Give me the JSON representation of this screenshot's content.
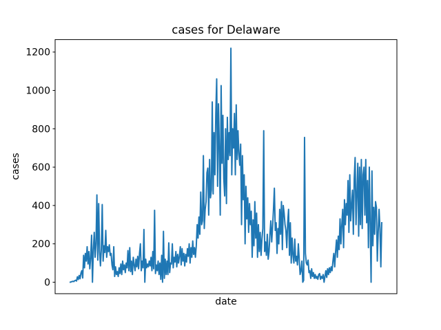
{
  "chart_data": {
    "type": "line",
    "title": "cases for Delaware",
    "xlabel": "date",
    "ylabel": "cases",
    "ylim": [
      -60,
      1265
    ],
    "yticks": [
      0,
      200,
      400,
      600,
      800,
      1000,
      1200
    ],
    "grid": false,
    "legend": "none",
    "line_color": "#1f77b4",
    "series": [
      {
        "values": [
          0,
          2,
          3,
          5,
          3,
          8,
          10,
          6,
          28,
          14,
          35,
          18,
          47,
          60,
          22,
          140,
          75,
          150,
          110,
          185,
          95,
          160,
          70,
          130,
          245,
          0,
          170,
          260,
          130,
          200,
          455,
          115,
          410,
          160,
          85,
          175,
          405,
          110,
          190,
          155,
          270,
          130,
          185,
          160,
          195,
          140,
          150,
          90,
          65,
          185,
          30,
          80,
          40,
          55,
          30,
          75,
          45,
          95,
          40,
          110,
          65,
          90,
          50,
          100,
          75,
          165,
          60,
          180,
          55,
          110,
          40,
          130,
          90,
          60,
          120,
          80,
          135,
          70,
          150,
          200,
          60,
          110,
          75,
          275,
          0,
          120,
          75,
          95,
          80,
          110,
          85,
          130,
          60,
          160,
          70,
          375,
          45,
          90,
          60,
          110,
          40,
          100,
          15,
          140,
          0,
          265,
          20,
          120,
          40,
          110,
          40,
          205,
          50,
          100,
          95,
          200,
          75,
          130,
          105,
          160,
          80,
          145,
          100,
          135,
          185,
          90,
          175,
          110,
          150,
          85,
          145,
          105,
          175,
          135,
          200,
          100,
          180,
          130,
          215,
          145,
          180,
          130,
          190,
          300,
          230,
          340,
          250,
          470,
          300,
          320,
          660,
          280,
          380,
          420,
          570,
          595,
          350,
          640,
          440,
          480,
          940,
          460,
          780,
          560,
          880,
          1060,
          500,
          930,
          700,
          350,
          1025,
          620,
          870,
          540,
          450,
          800,
          410,
          860,
          640,
          780,
          660,
          1220,
          560,
          800,
          700,
          880,
          560,
          925,
          640,
          790,
          670,
          610,
          720,
          300,
          660,
          430,
          560,
          200,
          500,
          330,
          440,
          260,
          410,
          300,
          370,
          130,
          325,
          190,
          420,
          230,
          360,
          130,
          300,
          160,
          260,
          140,
          225,
          280,
          790,
          160,
          210,
          140,
          250,
          120,
          160,
          250,
          320,
          210,
          290,
          380,
          490,
          270,
          310,
          150,
          280,
          200,
          380,
          250,
          420,
          170,
          400,
          360,
          300,
          270,
          180,
          310,
          380,
          140,
          310,
          100,
          230,
          140,
          100,
          225,
          110,
          135,
          90,
          200,
          120,
          40,
          60,
          110,
          0,
          10,
          755,
          150,
          100,
          90,
          115,
          50,
          60,
          20,
          70,
          30,
          50,
          20,
          40,
          20,
          30,
          15,
          40,
          45,
          15,
          30,
          20,
          40,
          0,
          30,
          60,
          25,
          70,
          40,
          75,
          50,
          80,
          60,
          110,
          150,
          80,
          160,
          220,
          130,
          240,
          170,
          330,
          200,
          300,
          380,
          180,
          430,
          300,
          410,
          350,
          530,
          260,
          560,
          320,
          400,
          480,
          250,
          540,
          650,
          300,
          460,
          620,
          240,
          600,
          300,
          640,
          280,
          560,
          600,
          350,
          640,
          310,
          530,
          180,
          600,
          300,
          0,
          580,
          190,
          390,
          250,
          420,
          390,
          110,
          260,
          380,
          280,
          80,
          310
        ]
      }
    ]
  }
}
